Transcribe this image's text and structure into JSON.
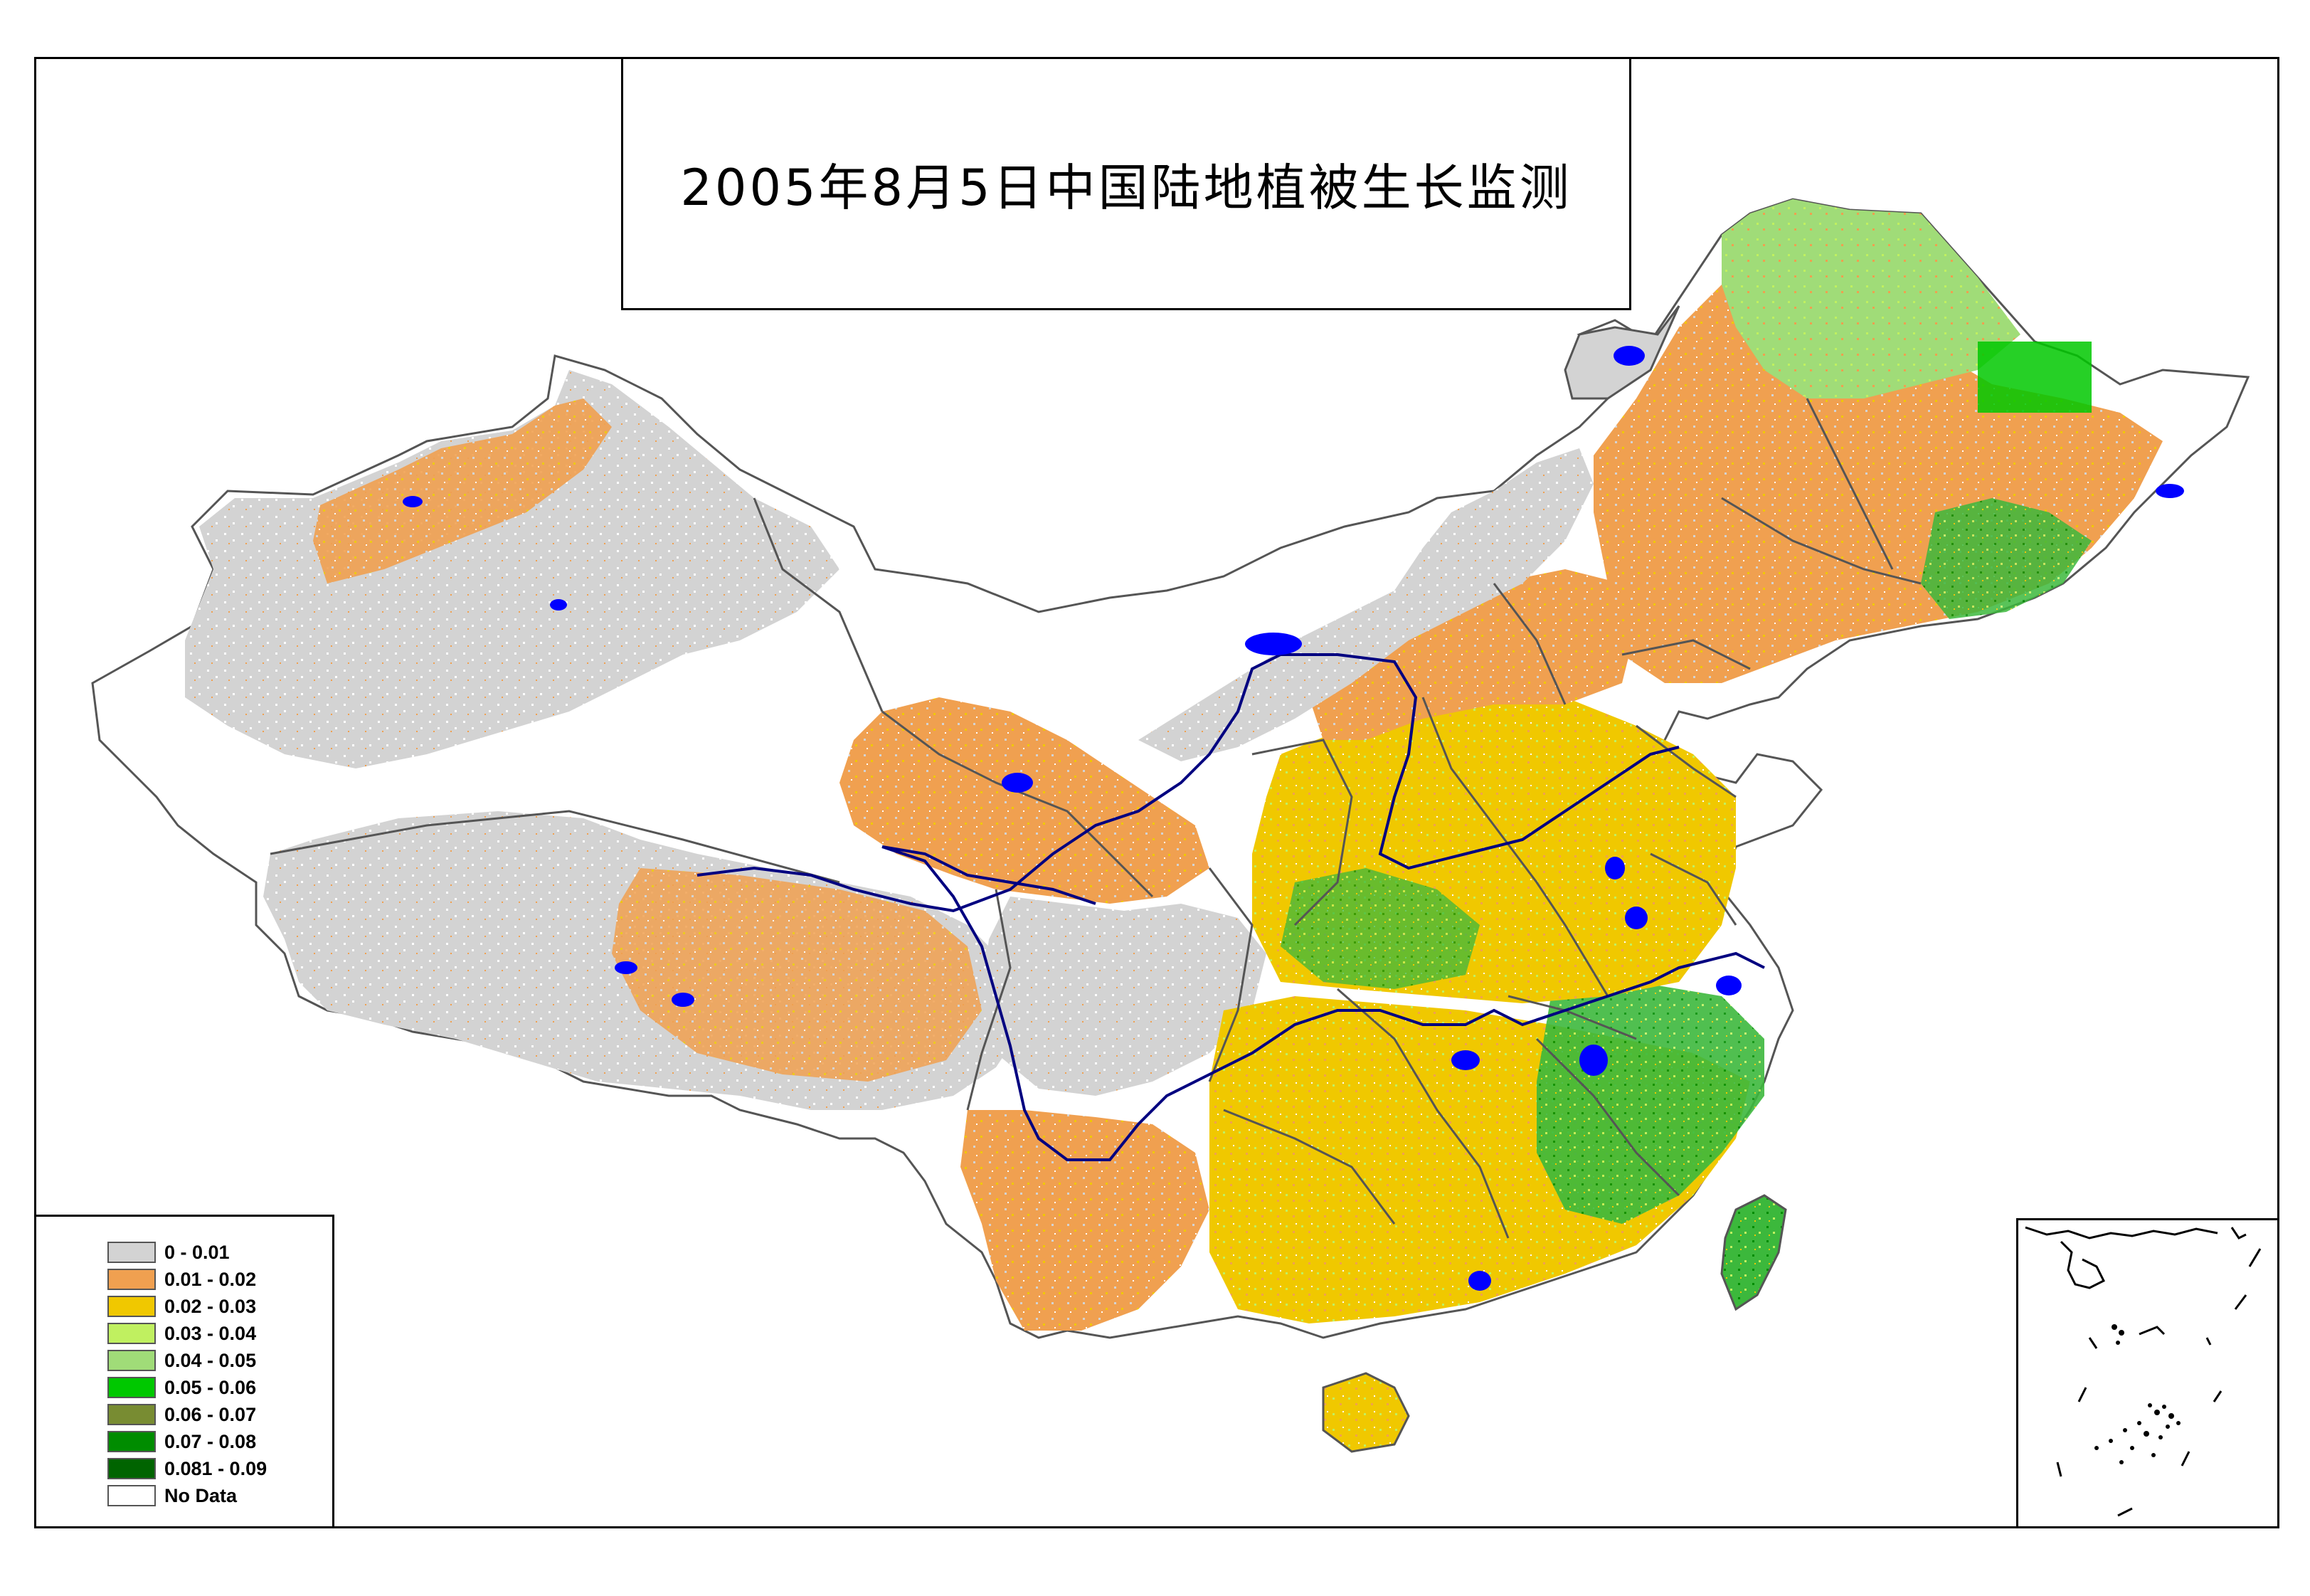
{
  "title": "2005年8月5日中国陆地植被生长监测",
  "legend": {
    "items": [
      {
        "label": "0 - 0.01",
        "color": "#d3d3d3"
      },
      {
        "label": "0.01 - 0.02",
        "color": "#f0a050"
      },
      {
        "label": "0.02 - 0.03",
        "color": "#f0c800"
      },
      {
        "label": "0.03 - 0.04",
        "color": "#c0f060"
      },
      {
        "label": "0.04 - 0.05",
        "color": "#a0dc78"
      },
      {
        "label": "0.05 - 0.06",
        "color": "#00c800"
      },
      {
        "label": "0.06 - 0.07",
        "color": "#788c32"
      },
      {
        "label": "0.07 - 0.08",
        "color": "#008c00"
      },
      {
        "label": "0.081 - 0.09",
        "color": "#006400"
      },
      {
        "label": "No Data",
        "color": "#ffffff"
      }
    ]
  },
  "colors": {
    "water": "#0000ff",
    "river": "#000080",
    "boundary": "#555555"
  }
}
